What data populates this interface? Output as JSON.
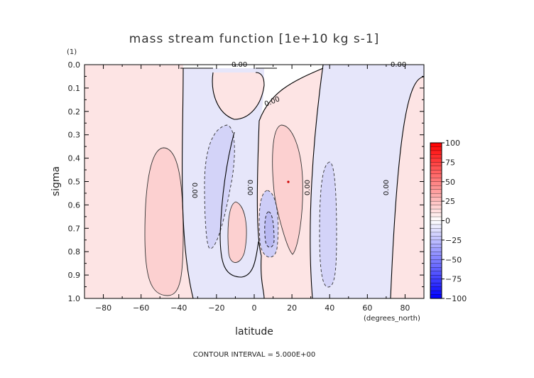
{
  "chart_data": {
    "type": "heatmap",
    "title": "mass stream function [1e+10 kg s-1]",
    "xlabel": "latitude",
    "ylabel": "sigma",
    "y_unit_label": "(1)",
    "x_unit_label": "(degrees_north)",
    "xlim": [
      -90,
      90
    ],
    "ylim": [
      0.0,
      1.0
    ],
    "y_inverted": true,
    "x_ticks": [
      -80,
      -60,
      -40,
      -20,
      0,
      20,
      40,
      60,
      80
    ],
    "y_ticks": [
      0.0,
      0.1,
      0.2,
      0.3,
      0.4,
      0.5,
      0.6,
      0.7,
      0.8,
      0.9,
      1.0
    ],
    "x_tick_labels": [
      "−80",
      "−60",
      "−40",
      "−20",
      "0",
      "20",
      "40",
      "60",
      "80"
    ],
    "y_tick_labels": [
      "0.0",
      "0.1",
      "0.2",
      "0.3",
      "0.4",
      "0.5",
      "0.6",
      "0.7",
      "0.8",
      "0.9",
      "1.0"
    ],
    "contour_interval_text": "CONTOUR INTERVAL = 5.000E+00",
    "contour_labels": [
      "0.00",
      "0.00",
      "0.00",
      "0.00",
      "0.00",
      "0.00"
    ],
    "colorbar": {
      "ticks": [
        100,
        75,
        50,
        25,
        0,
        -25,
        -50,
        -75,
        -100
      ],
      "tick_labels": [
        "100",
        "75",
        "50",
        "25",
        "0",
        "−25",
        "−50",
        "−75",
        "−100"
      ],
      "positive_color": "#ff0000",
      "negative_color": "#0000ff",
      "zero_color": "#ffffff"
    },
    "regions": [
      {
        "sign": "positive",
        "lat_range": [
          -90,
          -37
        ],
        "sigma_range": [
          0.0,
          1.0
        ]
      },
      {
        "sign": "positive",
        "lat_range": [
          -58,
          -40
        ],
        "sigma_range": [
          0.35,
          0.98
        ],
        "value": 5
      },
      {
        "sign": "negative",
        "lat_range": [
          -37,
          5
        ],
        "sigma_range": [
          0.02,
          1.0
        ]
      },
      {
        "sign": "negative",
        "lat_range": [
          -28,
          -11
        ],
        "sigma_range": [
          0.26,
          0.79
        ],
        "value": -5
      },
      {
        "sign": "positive",
        "lat_range": [
          -14,
          -1
        ],
        "sigma_range": [
          0.04,
          0.12
        ]
      },
      {
        "sign": "positive",
        "lat_range": [
          -14,
          -2
        ],
        "sigma_range": [
          0.62,
          0.88
        ],
        "value": 5
      },
      {
        "sign": "negative",
        "lat_range": [
          1,
          14
        ],
        "sigma_range": [
          0.55,
          0.83
        ],
        "value": -10
      },
      {
        "sign": "positive",
        "lat_range": [
          2,
          26
        ],
        "sigma_range": [
          0.12,
          1.0
        ]
      },
      {
        "sign": "positive",
        "lat_range": [
          10,
          25
        ],
        "sigma_range": [
          0.27,
          0.82
        ],
        "value": 5
      },
      {
        "sign": "negative",
        "lat_range": [
          26,
          70
        ],
        "sigma_range": [
          0.0,
          1.0
        ]
      },
      {
        "sign": "negative",
        "lat_range": [
          36,
          47
        ],
        "sigma_range": [
          0.42,
          0.95
        ],
        "value": -5
      },
      {
        "sign": "positive",
        "lat_range": [
          70,
          90
        ],
        "sigma_range": [
          0.05,
          1.0
        ]
      }
    ]
  }
}
